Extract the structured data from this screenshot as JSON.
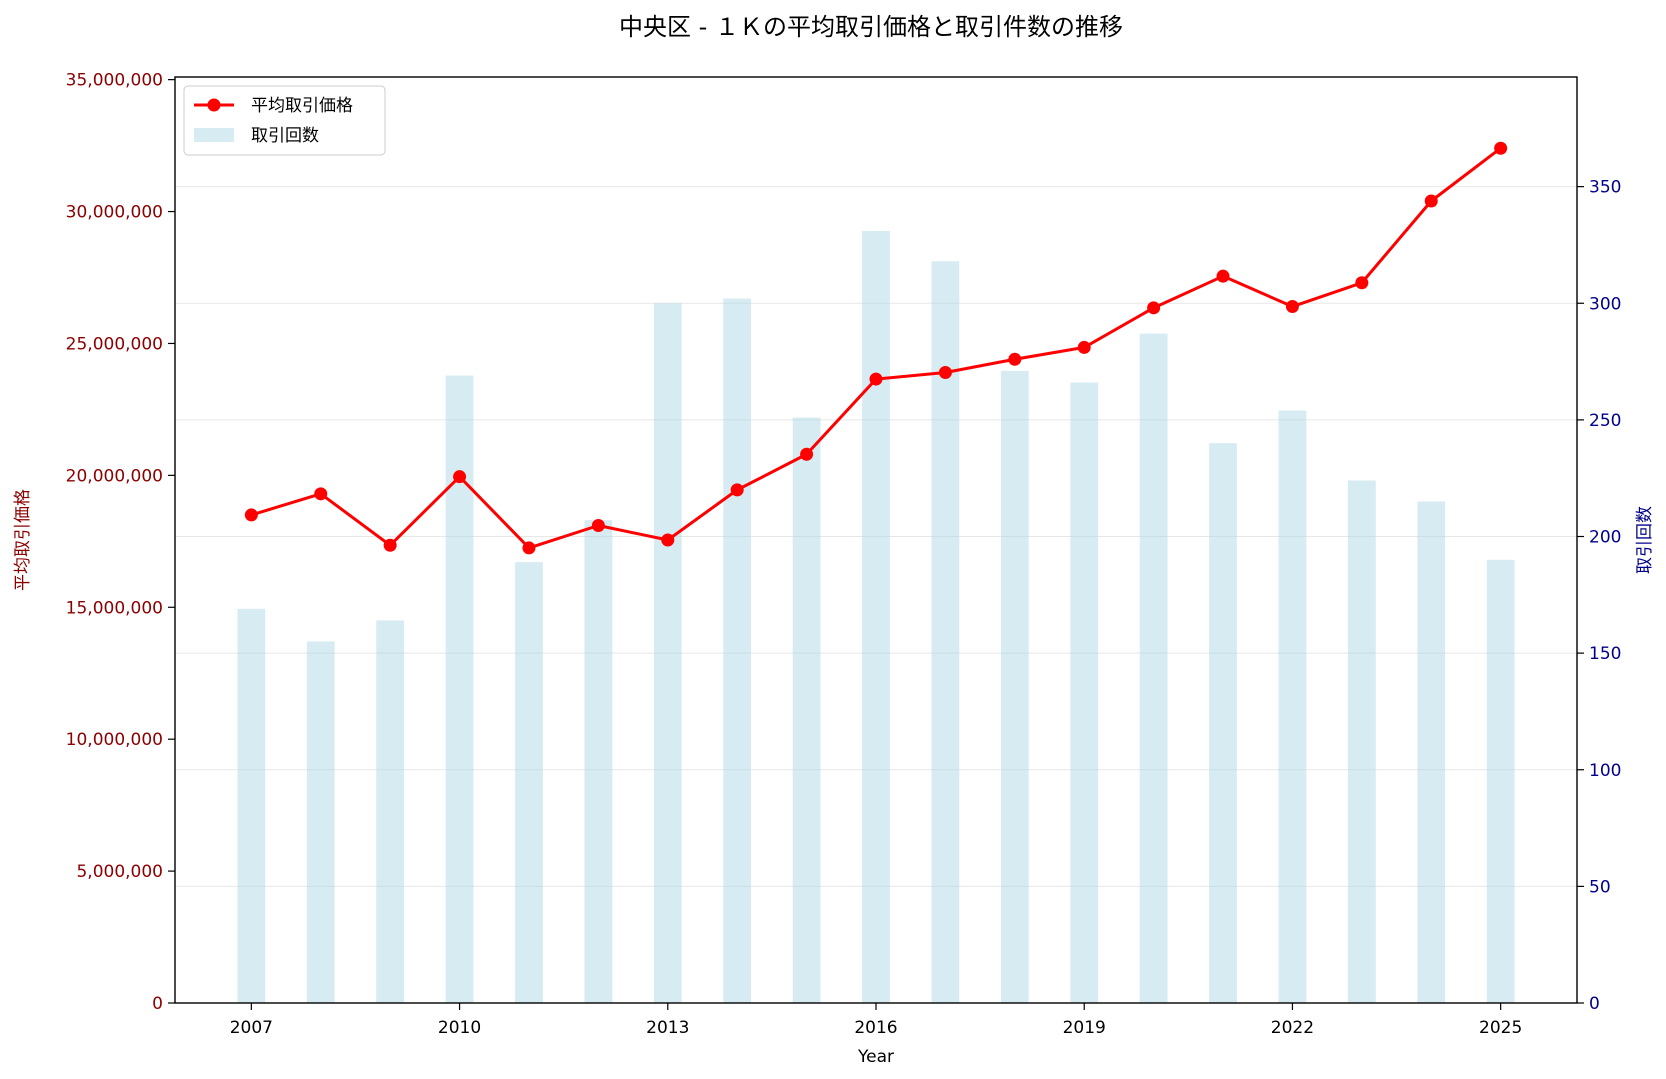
{
  "chart_data": {
    "type": "bar",
    "title": "中央区 - １Ｋの平均取引価格と取引件数の推移",
    "xlabel": "Year",
    "x": [
      2007,
      2008,
      2009,
      2010,
      2011,
      2012,
      2013,
      2014,
      2015,
      2016,
      2017,
      2018,
      2019,
      2020,
      2021,
      2022,
      2023,
      2024,
      2025
    ],
    "xticks": [
      "2007",
      "2010",
      "2013",
      "2016",
      "2019",
      "2022",
      "2025"
    ],
    "xlim": [
      2005.9,
      2026.1
    ],
    "grid": true,
    "legend_placement": "top-left",
    "series": [
      {
        "name": "平均取引価格",
        "type": "line",
        "axis": "left",
        "color": "#ff0000",
        "values": [
          18500000,
          19300000,
          17350000,
          19950000,
          17250000,
          18100000,
          17550000,
          19450000,
          20800000,
          23650000,
          23900000,
          24400000,
          24850000,
          26350000,
          27550000,
          26400000,
          27300000,
          30400000,
          32400000
        ]
      },
      {
        "name": "取引回数",
        "type": "bar",
        "axis": "right",
        "color": "#add8e6",
        "values": [
          169,
          155,
          164,
          269,
          189,
          207,
          300,
          302,
          251,
          331,
          318,
          271,
          266,
          287,
          240,
          254,
          224,
          215,
          190
        ]
      }
    ],
    "left_axis": {
      "label": "平均取引価格",
      "color": "#8b0000",
      "ylim": [
        0,
        35100000
      ],
      "ticks": [
        0,
        5000000,
        10000000,
        15000000,
        20000000,
        25000000,
        30000000,
        35000000
      ],
      "tick_labels": [
        "0",
        "5,000,000",
        "10,000,000",
        "15,000,000",
        "20,000,000",
        "25,000,000",
        "30,000,000",
        "35,000,000"
      ]
    },
    "right_axis": {
      "label": "取引回数",
      "color": "#00008b",
      "ylim": [
        0,
        397
      ],
      "ticks": [
        0,
        50,
        100,
        150,
        200,
        250,
        300,
        350
      ],
      "tick_labels": [
        "0",
        "50",
        "100",
        "150",
        "200",
        "250",
        "300",
        "350"
      ]
    }
  }
}
